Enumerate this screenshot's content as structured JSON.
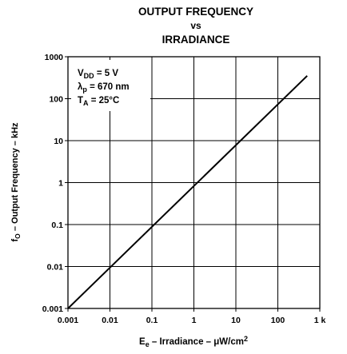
{
  "chart_data": {
    "type": "line",
    "title_lines": [
      "OUTPUT FREQUENCY",
      "vs",
      "IRRADIANCE"
    ],
    "xlabel": {
      "prefix": "E",
      "sub": "e",
      "main": " – Irradiance – μW/cm",
      "sup": "2"
    },
    "ylabel": {
      "prefix": "f",
      "sub": "O",
      "main": " – Output Frequency – kHz"
    },
    "x_scale": "log",
    "y_scale": "log",
    "xlim": [
      0.001,
      1000
    ],
    "ylim": [
      0.001,
      1000
    ],
    "x_ticks": [
      {
        "value": 0.001,
        "label": "0.001"
      },
      {
        "value": 0.01,
        "label": "0.01"
      },
      {
        "value": 0.1,
        "label": "0.1"
      },
      {
        "value": 1,
        "label": "1"
      },
      {
        "value": 10,
        "label": "10"
      },
      {
        "value": 100,
        "label": "100"
      },
      {
        "value": 1000,
        "label": "1 k"
      }
    ],
    "y_ticks": [
      {
        "value": 0.001,
        "label": "0.001"
      },
      {
        "value": 0.01,
        "label": "0.01"
      },
      {
        "value": 0.1,
        "label": "0.1"
      },
      {
        "value": 1,
        "label": "1"
      },
      {
        "value": 10,
        "label": "10"
      },
      {
        "value": 100,
        "label": "100"
      },
      {
        "value": 1000,
        "label": "1000"
      }
    ],
    "grid": true,
    "conditions": [
      {
        "prefix": "V",
        "sub": "DD",
        "main": " = 5 V"
      },
      {
        "prefix": "λ",
        "sub": "p",
        "main": " = 670 nm"
      },
      {
        "prefix": "T",
        "sub": "A",
        "main": " = 25°C"
      }
    ],
    "series": [
      {
        "color": "#000000",
        "x": [
          0.001,
          500
        ],
        "y": [
          0.001,
          350
        ]
      }
    ]
  }
}
